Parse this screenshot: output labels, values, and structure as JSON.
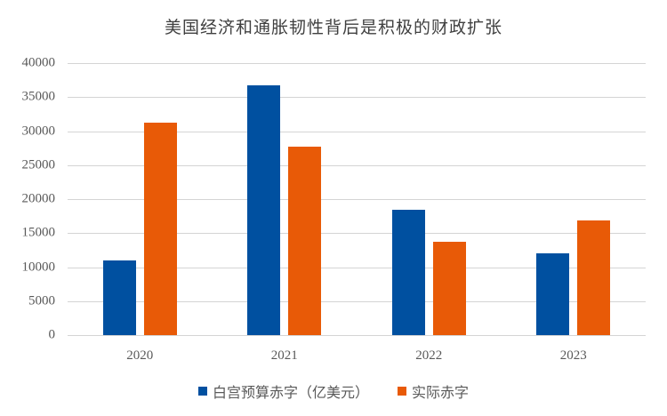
{
  "chart_data": {
    "type": "bar",
    "title": "美国经济和通胀韧性背后是积极的财政扩张",
    "xlabel": "",
    "ylabel": "",
    "categories": [
      "2020",
      "2021",
      "2022",
      "2023"
    ],
    "series": [
      {
        "name": "白宫预算赤字（亿美元）",
        "color": "#0050a0",
        "values": [
          11000,
          36700,
          18400,
          12000
        ]
      },
      {
        "name": "实际赤字",
        "color": "#e85a07",
        "values": [
          31200,
          27700,
          13700,
          16900
        ]
      }
    ],
    "ylim": [
      0,
      40000
    ],
    "yticks": [
      "0",
      "5000",
      "10000",
      "15000",
      "20000",
      "25000",
      "30000",
      "35000",
      "40000"
    ],
    "grid": true,
    "legend_position": "bottom"
  }
}
